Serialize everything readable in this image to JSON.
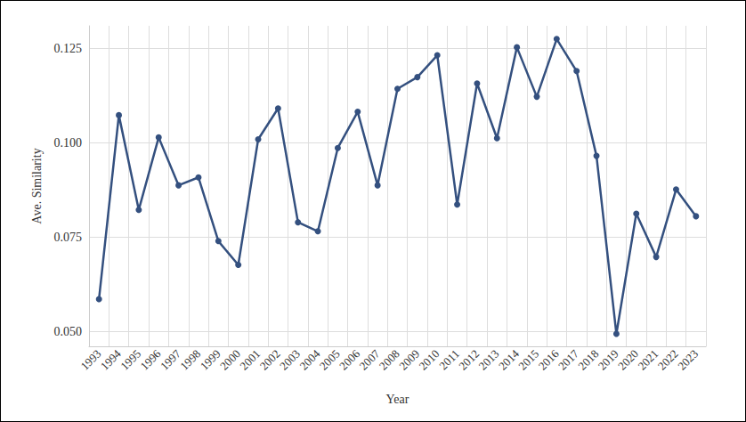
{
  "chart_data": {
    "type": "line",
    "x_label": "Year",
    "y_label": "Ave. Similarity",
    "categories": [
      "1993",
      "1994",
      "1995",
      "1996",
      "1997",
      "1998",
      "1999",
      "2000",
      "2001",
      "2002",
      "2003",
      "2004",
      "2005",
      "2006",
      "2007",
      "2008",
      "2009",
      "2010",
      "2011",
      "2012",
      "2013",
      "2014",
      "2015",
      "2016",
      "2017",
      "2018",
      "2019",
      "2020",
      "2021",
      "2022",
      "2023"
    ],
    "values": [
      0.0585,
      0.1073,
      0.0822,
      0.1014,
      0.0887,
      0.0908,
      0.0739,
      0.0676,
      0.1009,
      0.1091,
      0.0789,
      0.0765,
      0.0986,
      0.1082,
      0.0887,
      0.1143,
      0.1174,
      0.1232,
      0.0836,
      0.1157,
      0.1012,
      0.1253,
      0.1122,
      0.1275,
      0.119,
      0.0965,
      0.0493,
      0.0812,
      0.0697,
      0.0876,
      0.0805
    ],
    "color": "#34507f",
    "marker": "circle",
    "ylim": [
      0.046,
      0.131
    ],
    "yticks": [
      {
        "value": 0.05,
        "label": "0.050"
      },
      0.075,
      {
        "value": 0.1,
        "label": "0.100"
      },
      0.125
    ],
    "grid": true
  }
}
